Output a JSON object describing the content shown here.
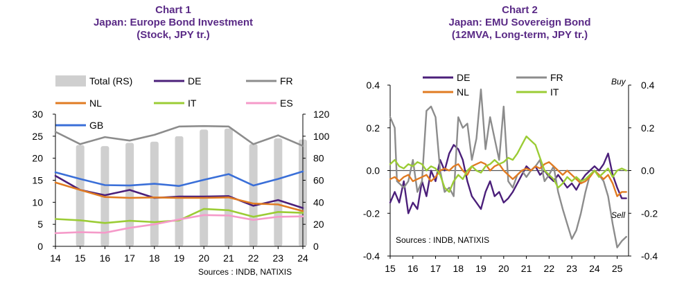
{
  "colors": {
    "title": "#5a2a86",
    "DE": "#4b1f7a",
    "FR": "#8c8c8c",
    "NL": "#e07b22",
    "IT": "#9bcc35",
    "ES": "#f59ac9",
    "GB": "#3a6fd8",
    "Total": "#cfcfcf",
    "axis": "#000000",
    "zero": "#555555"
  },
  "chart_data": [
    {
      "type": "line",
      "title": [
        "Chart 1",
        "Japan: Europe Bond Investment",
        "(Stock, JPY tr.)"
      ],
      "source": "Sources : INDB, NATIXIS",
      "x": [
        "14",
        "15",
        "16",
        "17",
        "18",
        "19",
        "20",
        "21",
        "22",
        "23",
        "24"
      ],
      "ylim": [
        0,
        30
      ],
      "yticks": [
        "0",
        "5",
        "10",
        "15",
        "20",
        "25",
        "30"
      ],
      "y2lim": [
        0,
        120
      ],
      "y2ticks": [
        "0",
        "20",
        "40",
        "60",
        "80",
        "100",
        "120"
      ],
      "legend": [
        "Total (RS)",
        "DE",
        "FR",
        "NL",
        "IT",
        "ES",
        "GB"
      ],
      "bars": {
        "name": "Total (RS)",
        "axis": "right",
        "values": [
          null,
          92,
          91,
          94,
          95,
          100,
          106,
          107,
          93,
          98,
          97
        ]
      },
      "series": [
        {
          "name": "DE",
          "values": [
            16.0,
            12.8,
            11.6,
            12.8,
            11.0,
            11.3,
            11.3,
            11.4,
            9.2,
            10.5,
            8.7
          ]
        },
        {
          "name": "FR",
          "values": [
            26.0,
            23.2,
            24.8,
            24.0,
            25.3,
            27.2,
            27.3,
            27.2,
            23.2,
            25.2,
            22.8
          ]
        },
        {
          "name": "NL",
          "values": [
            14.5,
            12.8,
            11.2,
            11.0,
            11.1,
            11.0,
            11.0,
            11.1,
            9.7,
            9.5,
            8.0
          ]
        },
        {
          "name": "IT",
          "values": [
            6.2,
            5.9,
            5.3,
            5.8,
            5.5,
            5.9,
            8.5,
            8.2,
            6.7,
            7.8,
            7.6
          ]
        },
        {
          "name": "ES",
          "values": [
            3.0,
            3.2,
            3.1,
            4.2,
            5.0,
            6.1,
            7.1,
            7.0,
            6.0,
            6.7,
            6.8
          ]
        },
        {
          "name": "GB",
          "values": [
            16.8,
            15.3,
            13.9,
            13.8,
            14.2,
            13.7,
            15.1,
            16.4,
            13.8,
            15.3,
            17.0
          ]
        }
      ]
    },
    {
      "type": "line",
      "title": [
        "Chart 2",
        "Japan: EMU Sovereign Bond",
        "(12MVA, Long-term, JPY tr.)"
      ],
      "source": "Sources : INDB, NATIXIS",
      "xticks": [
        "15",
        "16",
        "17",
        "18",
        "19",
        "20",
        "21",
        "22",
        "23",
        "24",
        "25"
      ],
      "xlim": [
        2015,
        2025.5
      ],
      "ylim": [
        -0.4,
        0.4
      ],
      "yticks": [
        "-0.4",
        "-0.2",
        "0.0",
        "0.2",
        "0.4"
      ],
      "y2ticks": [
        "-0.4",
        "-0.2",
        "0.0",
        "0.2",
        "0.4"
      ],
      "legend": [
        "DE",
        "FR",
        "NL",
        "IT"
      ],
      "annotations": [
        "Buy",
        "Sell"
      ],
      "series": [
        {
          "name": "DE",
          "points": [
            [
              2015,
              -0.15
            ],
            [
              2015.2,
              -0.1
            ],
            [
              2015.4,
              -0.15
            ],
            [
              2015.6,
              -0.05
            ],
            [
              2015.8,
              -0.2
            ],
            [
              2016,
              -0.15
            ],
            [
              2016.2,
              -0.18
            ],
            [
              2016.4,
              -0.05
            ],
            [
              2016.6,
              -0.12
            ],
            [
              2016.8,
              0.0
            ],
            [
              2017,
              -0.05
            ],
            [
              2017.2,
              0.05
            ],
            [
              2017.4,
              0.0
            ],
            [
              2017.6,
              0.08
            ],
            [
              2017.8,
              0.12
            ],
            [
              2018,
              0.1
            ],
            [
              2018.2,
              0.05
            ],
            [
              2018.4,
              -0.05
            ],
            [
              2018.6,
              -0.12
            ],
            [
              2018.8,
              -0.15
            ],
            [
              2019,
              -0.18
            ],
            [
              2019.2,
              -0.1
            ],
            [
              2019.4,
              -0.05
            ],
            [
              2019.6,
              -0.12
            ],
            [
              2019.8,
              -0.1
            ],
            [
              2020,
              -0.15
            ],
            [
              2020.2,
              -0.13
            ],
            [
              2020.4,
              -0.1
            ],
            [
              2020.6,
              -0.06
            ],
            [
              2020.8,
              -0.02
            ],
            [
              2021,
              0.02
            ],
            [
              2021.2,
              0.0
            ],
            [
              2021.4,
              0.02
            ],
            [
              2021.6,
              -0.02
            ],
            [
              2021.8,
              0.0
            ],
            [
              2022,
              -0.03
            ],
            [
              2022.2,
              -0.05
            ],
            [
              2022.4,
              -0.02
            ],
            [
              2022.6,
              -0.05
            ],
            [
              2022.8,
              -0.08
            ],
            [
              2023,
              -0.06
            ],
            [
              2023.2,
              -0.09
            ],
            [
              2023.4,
              -0.05
            ],
            [
              2023.6,
              -0.02
            ],
            [
              2023.8,
              0.0
            ],
            [
              2024,
              0.02
            ],
            [
              2024.2,
              0.0
            ],
            [
              2024.4,
              0.03
            ],
            [
              2024.6,
              0.08
            ],
            [
              2024.8,
              -0.02
            ],
            [
              2025,
              -0.08
            ],
            [
              2025.2,
              -0.13
            ],
            [
              2025.4,
              -0.13
            ]
          ]
        },
        {
          "name": "FR",
          "points": [
            [
              2015,
              0.25
            ],
            [
              2015.2,
              0.2
            ],
            [
              2015.3,
              -0.05
            ],
            [
              2015.6,
              -0.08
            ],
            [
              2015.8,
              -0.05
            ],
            [
              2016,
              0.05
            ],
            [
              2016.2,
              -0.1
            ],
            [
              2016.4,
              -0.05
            ],
            [
              2016.6,
              0.28
            ],
            [
              2016.8,
              0.3
            ],
            [
              2017,
              0.25
            ],
            [
              2017.2,
              0.0
            ],
            [
              2017.4,
              -0.1
            ],
            [
              2017.6,
              -0.08
            ],
            [
              2017.8,
              -0.12
            ],
            [
              2018,
              0.25
            ],
            [
              2018.2,
              0.2
            ],
            [
              2018.4,
              0.22
            ],
            [
              2018.6,
              0.05
            ],
            [
              2018.8,
              0.15
            ],
            [
              2019,
              0.38
            ],
            [
              2019.2,
              0.1
            ],
            [
              2019.4,
              0.25
            ],
            [
              2019.6,
              0.15
            ],
            [
              2019.8,
              0.05
            ],
            [
              2020,
              0.3
            ],
            [
              2020.2,
              -0.05
            ],
            [
              2020.4,
              -0.08
            ],
            [
              2020.6,
              -0.02
            ],
            [
              2020.8,
              0.0
            ],
            [
              2021,
              -0.03
            ],
            [
              2021.2,
              0.0
            ],
            [
              2021.4,
              0.02
            ],
            [
              2021.6,
              0.05
            ],
            [
              2021.8,
              -0.05
            ],
            [
              2022,
              -0.02
            ],
            [
              2022.2,
              0.02
            ],
            [
              2022.4,
              -0.1
            ],
            [
              2022.6,
              -0.18
            ],
            [
              2022.8,
              -0.25
            ],
            [
              2023,
              -0.32
            ],
            [
              2023.2,
              -0.28
            ],
            [
              2023.4,
              -0.2
            ],
            [
              2023.6,
              -0.1
            ],
            [
              2023.8,
              -0.02
            ],
            [
              2024,
              0.0
            ],
            [
              2024.2,
              -0.02
            ],
            [
              2024.4,
              -0.05
            ],
            [
              2024.6,
              -0.12
            ],
            [
              2024.8,
              -0.25
            ],
            [
              2025,
              -0.36
            ],
            [
              2025.2,
              -0.33
            ],
            [
              2025.4,
              -0.31
            ]
          ]
        },
        {
          "name": "NL",
          "points": [
            [
              2015,
              -0.04
            ],
            [
              2015.2,
              -0.03
            ],
            [
              2015.4,
              -0.05
            ],
            [
              2015.6,
              -0.03
            ],
            [
              2015.8,
              -0.02
            ],
            [
              2016,
              -0.05
            ],
            [
              2016.2,
              -0.04
            ],
            [
              2016.4,
              -0.03
            ],
            [
              2016.6,
              -0.02
            ],
            [
              2016.8,
              -0.05
            ],
            [
              2017,
              -0.03
            ],
            [
              2017.2,
              0.0
            ],
            [
              2017.4,
              0.01
            ],
            [
              2017.6,
              0.0
            ],
            [
              2017.8,
              0.02
            ],
            [
              2018,
              0.03
            ],
            [
              2018.2,
              0.0
            ],
            [
              2018.4,
              -0.02
            ],
            [
              2018.6,
              0.02
            ],
            [
              2018.8,
              0.03
            ],
            [
              2019,
              0.04
            ],
            [
              2019.2,
              0.03
            ],
            [
              2019.4,
              0.0
            ],
            [
              2019.6,
              0.02
            ],
            [
              2019.8,
              0.03
            ],
            [
              2020,
              0.0
            ],
            [
              2020.2,
              -0.02
            ],
            [
              2020.4,
              -0.04
            ],
            [
              2020.6,
              -0.02
            ],
            [
              2020.8,
              0.0
            ],
            [
              2021,
              0.01
            ],
            [
              2021.2,
              0.0
            ],
            [
              2021.4,
              0.02
            ],
            [
              2021.6,
              0.01
            ],
            [
              2021.8,
              0.03
            ],
            [
              2022,
              0.04
            ],
            [
              2022.2,
              0.02
            ],
            [
              2022.4,
              0.0
            ],
            [
              2022.6,
              -0.02
            ],
            [
              2022.8,
              0.0
            ],
            [
              2023,
              -0.02
            ],
            [
              2023.2,
              -0.04
            ],
            [
              2023.4,
              -0.06
            ],
            [
              2023.6,
              -0.05
            ],
            [
              2023.8,
              -0.03
            ],
            [
              2024,
              0.0
            ],
            [
              2024.2,
              -0.02
            ],
            [
              2024.4,
              -0.04
            ],
            [
              2024.6,
              -0.02
            ],
            [
              2024.8,
              -0.06
            ],
            [
              2025,
              -0.12
            ],
            [
              2025.2,
              -0.1
            ],
            [
              2025.4,
              -0.1
            ]
          ]
        },
        {
          "name": "IT",
          "points": [
            [
              2015,
              0.03
            ],
            [
              2015.2,
              0.05
            ],
            [
              2015.4,
              0.02
            ],
            [
              2015.6,
              0.01
            ],
            [
              2015.8,
              0.03
            ],
            [
              2016,
              0.02
            ],
            [
              2016.2,
              0.04
            ],
            [
              2016.4,
              0.03
            ],
            [
              2016.6,
              0.0
            ],
            [
              2016.8,
              0.02
            ],
            [
              2017,
              0.01
            ],
            [
              2017.2,
              -0.02
            ],
            [
              2017.4,
              -0.08
            ],
            [
              2017.6,
              -0.1
            ],
            [
              2017.8,
              -0.05
            ],
            [
              2018,
              -0.02
            ],
            [
              2018.2,
              -0.04
            ],
            [
              2018.4,
              0.0
            ],
            [
              2018.6,
              0.02
            ],
            [
              2018.8,
              0.0
            ],
            [
              2019,
              -0.01
            ],
            [
              2019.2,
              0.02
            ],
            [
              2019.4,
              0.03
            ],
            [
              2019.6,
              0.05
            ],
            [
              2019.8,
              0.03
            ],
            [
              2020,
              0.04
            ],
            [
              2020.2,
              0.06
            ],
            [
              2020.4,
              0.05
            ],
            [
              2020.6,
              0.08
            ],
            [
              2020.8,
              0.12
            ],
            [
              2021,
              0.16
            ],
            [
              2021.2,
              0.14
            ],
            [
              2021.4,
              0.12
            ],
            [
              2021.6,
              0.06
            ],
            [
              2021.8,
              0.0
            ],
            [
              2022,
              -0.02
            ],
            [
              2022.2,
              -0.04
            ],
            [
              2022.4,
              -0.08
            ],
            [
              2022.6,
              -0.06
            ],
            [
              2022.8,
              -0.03
            ],
            [
              2023,
              -0.05
            ],
            [
              2023.2,
              -0.03
            ],
            [
              2023.4,
              -0.05
            ],
            [
              2023.6,
              -0.04
            ],
            [
              2023.8,
              -0.02
            ],
            [
              2024,
              0.0
            ],
            [
              2024.2,
              -0.03
            ],
            [
              2024.4,
              -0.01
            ],
            [
              2024.6,
              0.01
            ],
            [
              2024.8,
              -0.03
            ],
            [
              2025,
              0.0
            ],
            [
              2025.2,
              0.01
            ],
            [
              2025.4,
              0.0
            ]
          ]
        }
      ]
    }
  ]
}
